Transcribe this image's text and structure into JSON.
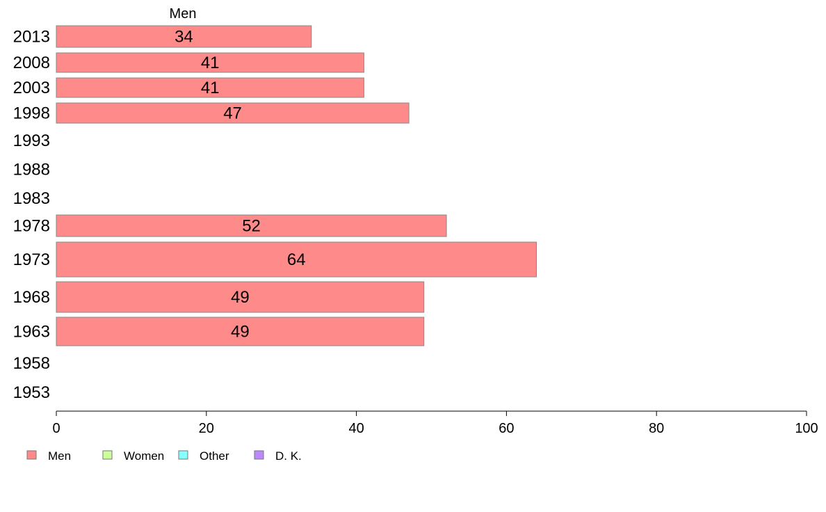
{
  "chart_data": {
    "type": "bar",
    "orientation": "horizontal",
    "categories": [
      "2013",
      "2008",
      "2003",
      "1998",
      "1993",
      "1988",
      "1983",
      "1978",
      "1973",
      "1968",
      "1963",
      "1958",
      "1953"
    ],
    "series": [
      {
        "name": "Men",
        "values": [
          34,
          41,
          41,
          47,
          null,
          null,
          null,
          52,
          64,
          49,
          49,
          null,
          null
        ]
      }
    ],
    "value_labels": [
      "34",
      "41",
      "41",
      "47",
      "",
      "",
      "",
      "52",
      "64",
      "49",
      "49",
      "",
      ""
    ],
    "header_label": "Men",
    "xlim": [
      0,
      100
    ],
    "xticks": [
      0,
      20,
      40,
      60,
      80,
      100
    ],
    "grid": false,
    "legend": {
      "placement": "bottom-left",
      "items": [
        {
          "label": "Men",
          "color": "#ff8a8a"
        },
        {
          "label": "Women",
          "color": "#ccff99"
        },
        {
          "label": "Other",
          "color": "#88ffff"
        },
        {
          "label": "D. K.",
          "color": "#bb88ff"
        }
      ]
    },
    "colors": {
      "bar": "#ff8a8a",
      "bar_border": "#888888"
    }
  }
}
